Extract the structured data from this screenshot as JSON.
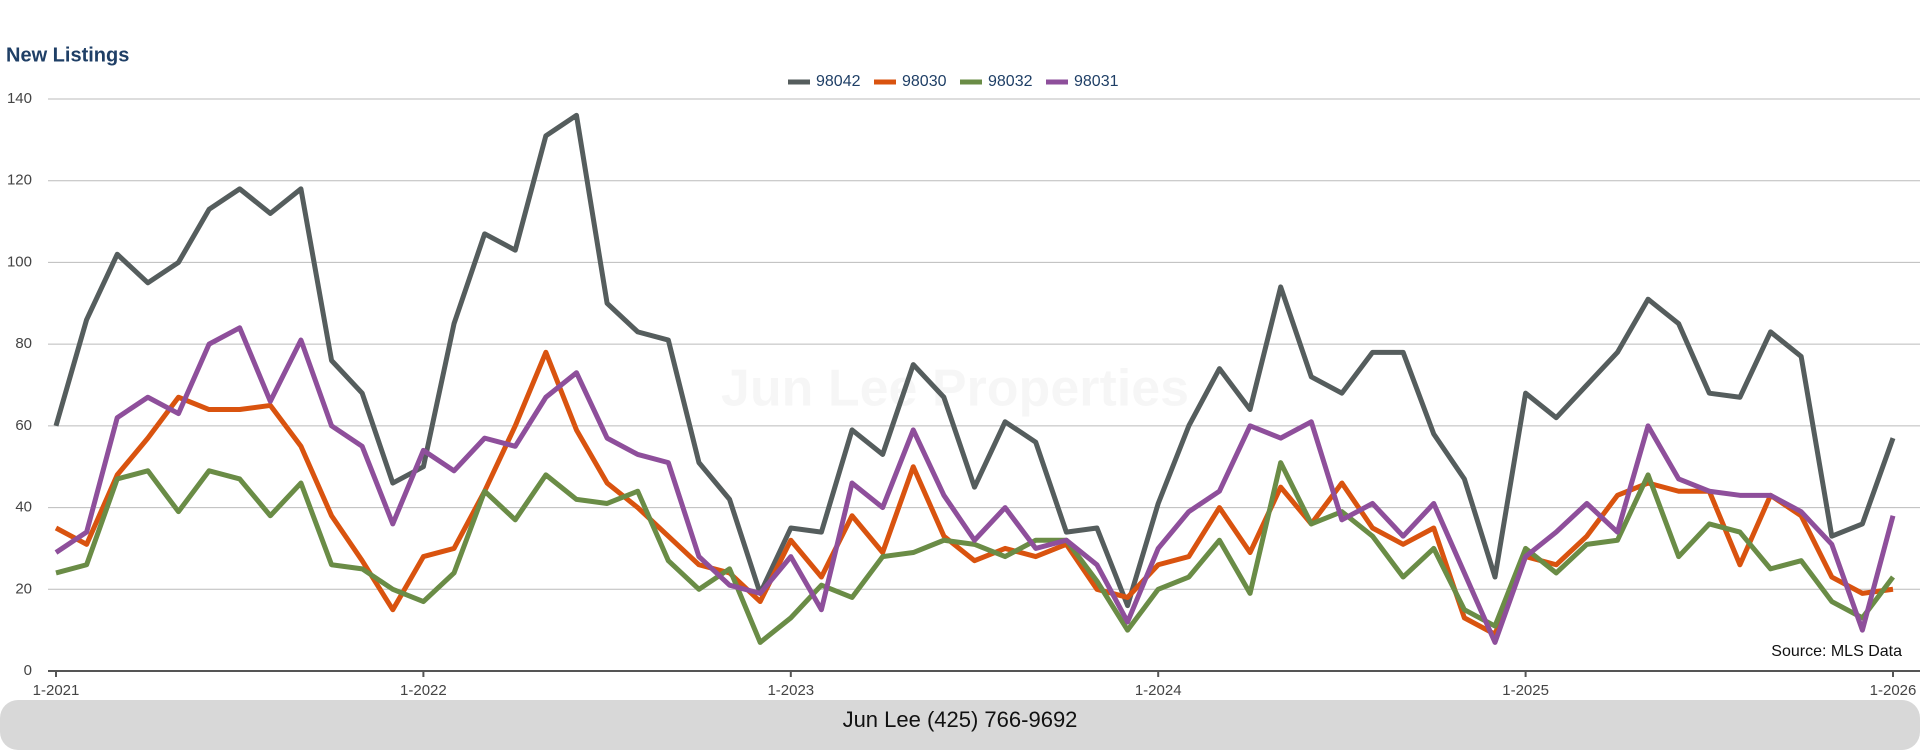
{
  "chart_data": {
    "type": "line",
    "title": "New Listings",
    "categories": [
      "1-2021",
      null,
      null,
      null,
      null,
      null,
      null,
      null,
      null,
      null,
      null,
      null,
      "1-2022",
      null,
      null,
      null,
      null,
      null,
      null,
      null,
      null,
      null,
      null,
      null,
      "1-2023",
      null,
      null,
      null,
      null,
      null,
      null,
      null,
      null,
      null,
      null,
      null,
      "1-2024",
      null,
      null,
      null,
      null,
      null,
      null,
      null,
      null,
      null,
      null,
      null,
      "1-2025",
      null,
      null,
      null,
      null,
      null,
      null,
      null,
      null,
      null,
      null,
      null,
      "1-2026"
    ],
    "series": [
      {
        "name": "98042",
        "color": "#555d5d",
        "values": [
          60,
          86,
          102,
          95,
          100,
          113,
          118,
          112,
          118,
          76,
          68,
          46,
          50,
          85,
          107,
          103,
          131,
          136,
          90,
          83,
          81,
          51,
          42,
          19,
          35,
          34,
          59,
          53,
          75,
          67,
          45,
          61,
          56,
          34,
          35,
          16,
          41,
          60,
          74,
          64,
          94,
          72,
          68,
          78,
          78,
          58,
          47,
          23,
          68,
          62,
          70,
          78,
          91,
          85,
          68,
          67,
          83,
          77,
          33,
          36,
          57
        ]
      },
      {
        "name": "98030",
        "color": "#d9530f",
        "values": [
          35,
          31,
          48,
          57,
          67,
          64,
          64,
          65,
          55,
          38,
          27,
          15,
          28,
          30,
          44,
          60,
          78,
          59,
          46,
          40,
          33,
          26,
          24,
          17,
          32,
          23,
          38,
          29,
          50,
          33,
          27,
          30,
          28,
          31,
          20,
          18,
          26,
          28,
          40,
          29,
          45,
          36,
          46,
          35,
          31,
          35,
          13,
          9,
          28,
          26,
          33,
          43,
          46,
          44,
          44,
          26,
          43,
          38,
          23,
          19,
          20
        ]
      },
      {
        "name": "98032",
        "color": "#6a8c46",
        "values": [
          24,
          26,
          47,
          49,
          39,
          49,
          47,
          38,
          46,
          26,
          25,
          20,
          17,
          24,
          44,
          37,
          48,
          42,
          41,
          44,
          27,
          20,
          25,
          7,
          13,
          21,
          18,
          28,
          29,
          32,
          31,
          28,
          32,
          32,
          22,
          10,
          20,
          23,
          32,
          19,
          51,
          36,
          39,
          33,
          23,
          30,
          15,
          11,
          30,
          24,
          31,
          32,
          48,
          28,
          36,
          34,
          25,
          27,
          17,
          13,
          23
        ]
      },
      {
        "name": "98031",
        "color": "#8e4f9b",
        "values": [
          29,
          34,
          62,
          67,
          63,
          80,
          84,
          66,
          81,
          60,
          55,
          36,
          54,
          49,
          57,
          55,
          67,
          73,
          57,
          53,
          51,
          28,
          21,
          19,
          28,
          15,
          46,
          40,
          59,
          43,
          32,
          40,
          30,
          32,
          26,
          12,
          30,
          39,
          44,
          60,
          57,
          61,
          37,
          41,
          33,
          41,
          24,
          7,
          28,
          34,
          41,
          34,
          60,
          47,
          44,
          43,
          43,
          39,
          31,
          10,
          38
        ]
      }
    ],
    "ylim": [
      0,
      140
    ],
    "yticks": [
      0,
      20,
      40,
      60,
      80,
      100,
      120,
      140
    ],
    "grid": true,
    "legend": "top",
    "watermark": "Jun Lee Properties",
    "source": "Source: MLS Data"
  },
  "footer": {
    "contact": "Jun Lee (425) 766-9692"
  }
}
